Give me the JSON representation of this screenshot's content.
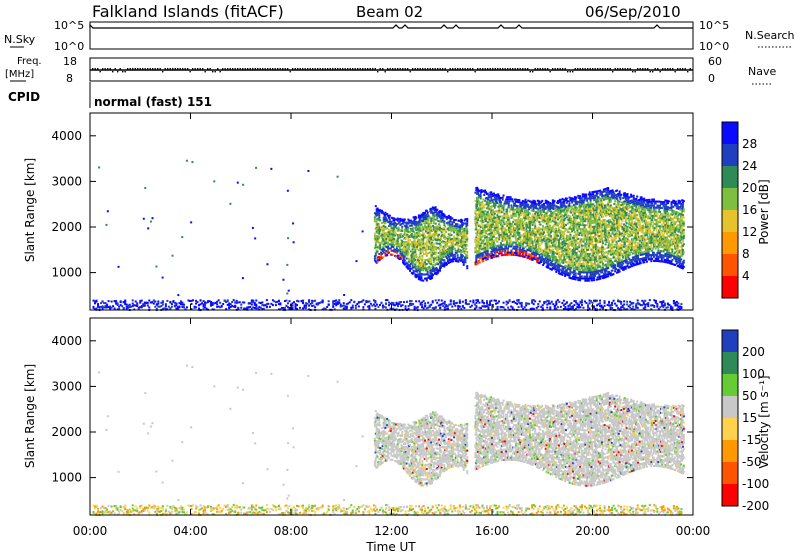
{
  "header": {
    "station": "Falkland Islands (fitACF)",
    "beam": "Beam 02",
    "date": "06/Sep/2010"
  },
  "strip_panels": {
    "nsky_label": "N.Sky",
    "nsky_ticks": [
      "10^5",
      "10^0"
    ],
    "nsearch_label": "N.Search",
    "nsearch_ticks": [
      "10^5",
      "10^0"
    ],
    "freq_label": "Freq.",
    "freq_unit": "[MHz]",
    "freq_ticks": [
      "18",
      "8"
    ],
    "nave_label": "Nave",
    "nave_ticks": [
      "60",
      "0"
    ],
    "cpid_label": "CPID",
    "cpid_value": "normal (fast) 151"
  },
  "colors": {
    "power": [
      "#0a0aff",
      "#1f3fbf",
      "#2e8b57",
      "#7fbf3f",
      "#e6c22c",
      "#ff9900",
      "#ff5500",
      "#ff0000"
    ],
    "velocity": [
      "#1f3fbf",
      "#2e8b57",
      "#66cc33",
      "#c8c8c8",
      "#ffd24d",
      "#ff9900",
      "#ff5500",
      "#ff0000"
    ]
  },
  "chart_data": [
    {
      "type": "heatmap",
      "parameter": "power",
      "ylabel": "Slant Range [km]",
      "xlabel": "Time UT",
      "x_ticks": [
        "00:00",
        "04:00",
        "08:00",
        "12:00",
        "16:00",
        "20:00",
        "00:00"
      ],
      "x_range_hours": [
        0,
        24
      ],
      "ylim": [
        180,
        4500
      ],
      "y_ticks": [
        1000,
        2000,
        3000,
        4000
      ],
      "colorbar_label": "Power [dB]",
      "colorbar_ticks": [
        "28",
        "24",
        "20",
        "16",
        "12",
        "8",
        "4"
      ],
      "scatter_regions": [
        {
          "t_start": 11.3,
          "t_end": 15.0,
          "r_low": 1000,
          "r_high": 2500,
          "peak_r": 1250,
          "peak_t": 11.9
        },
        {
          "t_start": 15.3,
          "t_end": 23.6,
          "r_low": 1000,
          "r_high": 2900,
          "peak_r": 1200,
          "peak_t": 15.8
        },
        {
          "t_start": 0.0,
          "t_end": 23.6,
          "r_low": 180,
          "r_high": 400,
          "note": "near-range"
        }
      ]
    },
    {
      "type": "heatmap",
      "parameter": "velocity",
      "ylabel": "Slant Range [km]",
      "xlabel": "Time UT",
      "x_ticks": [
        "00:00",
        "04:00",
        "08:00",
        "12:00",
        "16:00",
        "20:00",
        "00:00"
      ],
      "x_range_hours": [
        0,
        24
      ],
      "ylim": [
        180,
        4500
      ],
      "y_ticks": [
        1000,
        2000,
        3000,
        4000
      ],
      "colorbar_label": "Velocity [m s⁻¹]",
      "colorbar_ticks": [
        "200",
        "100",
        "50",
        "15",
        "-15",
        "-50",
        "-100",
        "-200"
      ]
    }
  ]
}
